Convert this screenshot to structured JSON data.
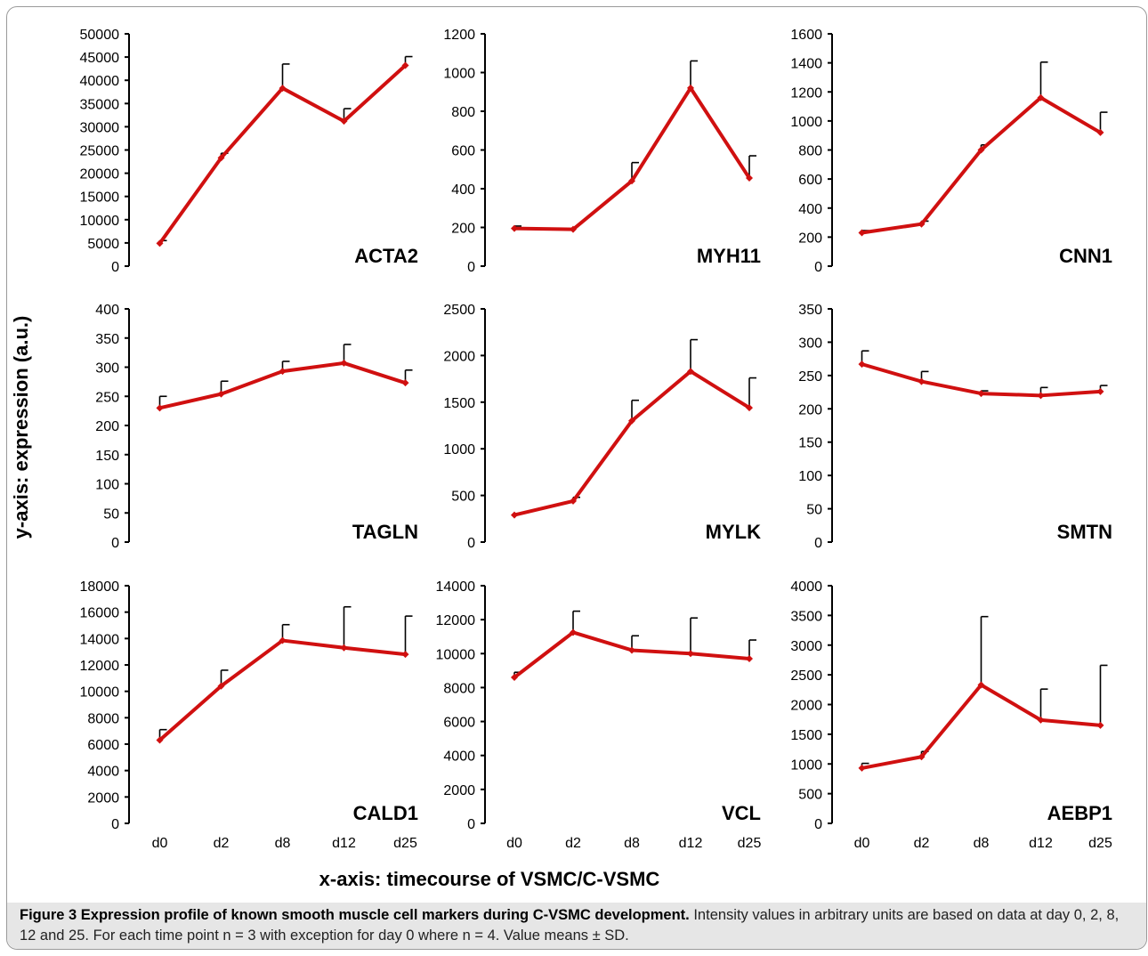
{
  "figure": {
    "ylabel": "y-axis: expression (a.u.)",
    "xlabel": "x-axis: timecourse of VSMC/C-VSMC",
    "caption_title": "Figure 3 Expression profile of known smooth muscle cell markers during C-VSMC development.",
    "caption_text": "Intensity values in arbitrary units are based on data at day 0, 2, 8, 12 and 25. For each time point n = 3 with exception for day 0 where n = 4. Value means ± SD.",
    "line_color": "#d01010"
  },
  "chart_data": [
    {
      "type": "line",
      "title": "ACTA2",
      "categories": [
        "d0",
        "d2",
        "d8",
        "d12",
        "d25"
      ],
      "values": [
        4900,
        23300,
        38300,
        31200,
        43200
      ],
      "errors": [
        600,
        1000,
        5200,
        2700,
        1900
      ],
      "ylim": [
        0,
        50000
      ],
      "yticks": [
        0,
        5000,
        10000,
        15000,
        20000,
        25000,
        30000,
        35000,
        40000,
        45000,
        50000
      ]
    },
    {
      "type": "line",
      "title": "MYH11",
      "categories": [
        "d0",
        "d2",
        "d8",
        "d12",
        "d25"
      ],
      "values": [
        195,
        190,
        440,
        920,
        455
      ],
      "errors": [
        12,
        0,
        95,
        140,
        115
      ],
      "ylim": [
        0,
        1200
      ],
      "yticks": [
        0,
        200,
        400,
        600,
        800,
        1000,
        1200
      ]
    },
    {
      "type": "line",
      "title": "CNN1",
      "categories": [
        "d0",
        "d2",
        "d8",
        "d12",
        "d25"
      ],
      "values": [
        230,
        290,
        800,
        1160,
        920
      ],
      "errors": [
        15,
        20,
        35,
        245,
        140
      ],
      "ylim": [
        0,
        1600
      ],
      "yticks": [
        0,
        200,
        400,
        600,
        800,
        1000,
        1200,
        1400,
        1600
      ]
    },
    {
      "type": "line",
      "title": "TAGLN",
      "categories": [
        "d0",
        "d2",
        "d8",
        "d12",
        "d25"
      ],
      "values": [
        230,
        254,
        293,
        307,
        273
      ],
      "errors": [
        20,
        22,
        17,
        32,
        22
      ],
      "ylim": [
        0,
        400
      ],
      "yticks": [
        0,
        50,
        100,
        150,
        200,
        250,
        300,
        350,
        400
      ]
    },
    {
      "type": "line",
      "title": "MYLK",
      "categories": [
        "d0",
        "d2",
        "d8",
        "d12",
        "d25"
      ],
      "values": [
        290,
        440,
        1300,
        1830,
        1440
      ],
      "errors": [
        0,
        40,
        220,
        340,
        320
      ],
      "ylim": [
        0,
        2500
      ],
      "yticks": [
        0,
        500,
        1000,
        1500,
        2000,
        2500
      ]
    },
    {
      "type": "line",
      "title": "SMTN",
      "categories": [
        "d0",
        "d2",
        "d8",
        "d12",
        "d25"
      ],
      "values": [
        267,
        241,
        223,
        220,
        226
      ],
      "errors": [
        20,
        15,
        4,
        12,
        9
      ],
      "ylim": [
        0,
        350
      ],
      "yticks": [
        0,
        50,
        100,
        150,
        200,
        250,
        300,
        350
      ]
    },
    {
      "type": "line",
      "title": "CALD1",
      "categories": [
        "d0",
        "d2",
        "d8",
        "d12",
        "d25"
      ],
      "values": [
        6300,
        10400,
        13850,
        13300,
        12800
      ],
      "errors": [
        800,
        1200,
        1200,
        3100,
        2900
      ],
      "ylim": [
        0,
        18000
      ],
      "yticks": [
        0,
        2000,
        4000,
        6000,
        8000,
        10000,
        12000,
        14000,
        16000,
        18000
      ]
    },
    {
      "type": "line",
      "title": "VCL",
      "categories": [
        "d0",
        "d2",
        "d8",
        "d12",
        "d25"
      ],
      "values": [
        8600,
        11250,
        10200,
        10000,
        9700
      ],
      "errors": [
        300,
        1250,
        850,
        2100,
        1100
      ],
      "ylim": [
        0,
        14000
      ],
      "yticks": [
        0,
        2000,
        4000,
        6000,
        8000,
        10000,
        12000,
        14000
      ]
    },
    {
      "type": "line",
      "title": "AEBP1",
      "categories": [
        "d0",
        "d2",
        "d8",
        "d12",
        "d25"
      ],
      "values": [
        930,
        1120,
        2330,
        1740,
        1650
      ],
      "errors": [
        80,
        90,
        1150,
        520,
        1010
      ],
      "ylim": [
        0,
        4000
      ],
      "yticks": [
        0,
        500,
        1000,
        1500,
        2000,
        2500,
        3000,
        3500,
        4000
      ]
    }
  ]
}
